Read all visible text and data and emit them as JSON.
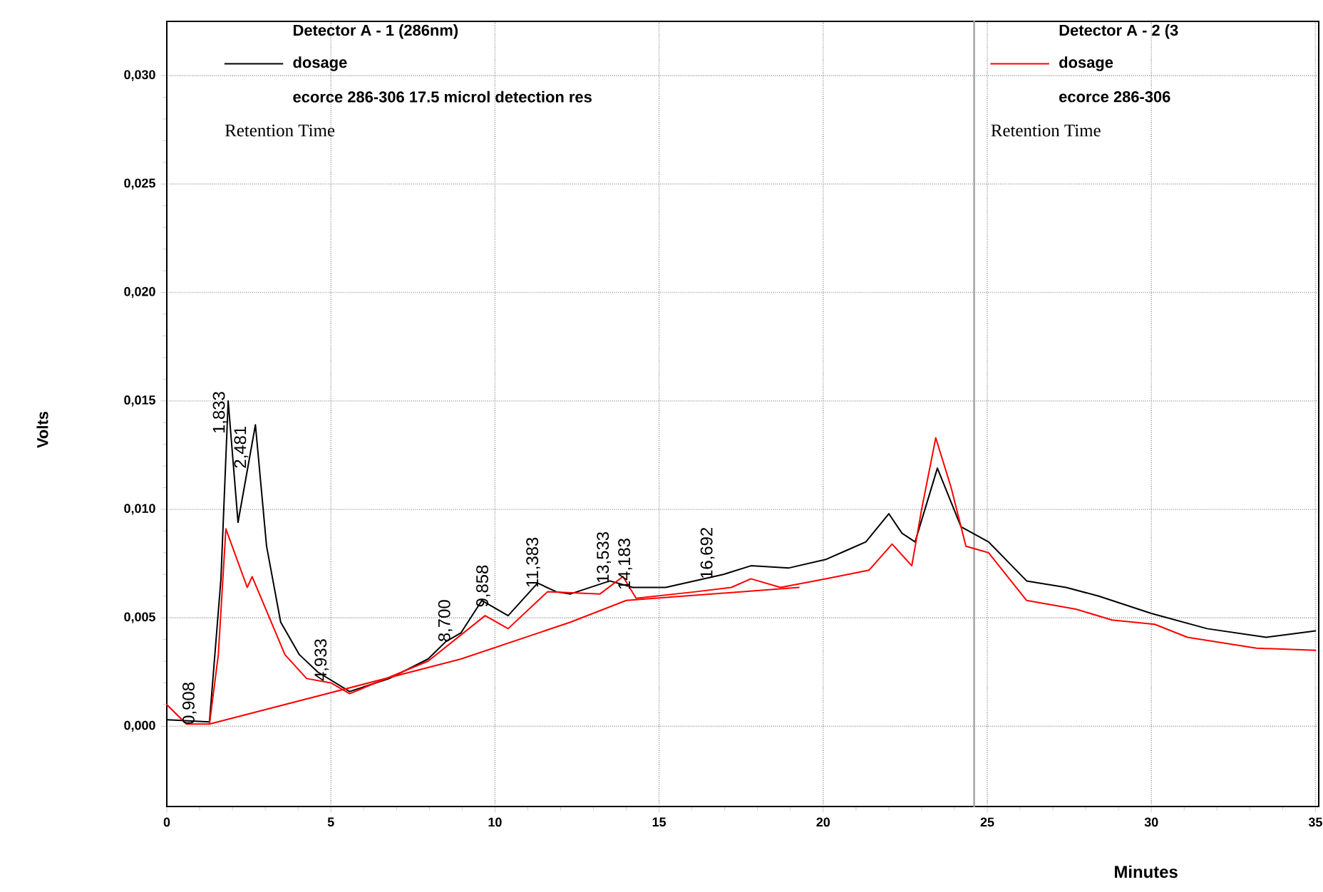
{
  "chart_data": {
    "type": "line",
    "xlabel": "Minutes",
    "ylabel": "Volts",
    "xlim": [
      0,
      35.1
    ],
    "ylim": [
      -0.0037,
      0.0325
    ],
    "xticks": [
      0,
      5,
      10,
      15,
      20,
      25,
      30,
      35
    ],
    "yticks": [
      {
        "value": 0,
        "label": "0,000"
      },
      {
        "value": 0.005,
        "label": "0,005"
      },
      {
        "value": 0.01,
        "label": "0,010"
      },
      {
        "value": 0.015,
        "label": "0,015"
      },
      {
        "value": 0.02,
        "label": "0,020"
      },
      {
        "value": 0.025,
        "label": "0,025"
      },
      {
        "value": 0.03,
        "label": "0,030"
      }
    ],
    "grid": true,
    "legend": "top",
    "marker": "none",
    "line_style": "solid",
    "series": [
      {
        "name": "dosage",
        "color": "#000000",
        "x": [
          0,
          1.3,
          1.65,
          1.87,
          2.17,
          2.7,
          3.04,
          3.47,
          4.04,
          4.6,
          5.57,
          6.78,
          7.96,
          8.5,
          8.96,
          9.6,
          10.4,
          11.3,
          11.87,
          12.3,
          13.5,
          14.2,
          15.2,
          16.96,
          17.8,
          18.96,
          20.1,
          20.7,
          21.3,
          22.0,
          22.4,
          22.8,
          23.48,
          24.2,
          25.04,
          26.2,
          27.4,
          28.4,
          30.0,
          31.7,
          33.5,
          35.0
        ],
        "values": [
          0.0003,
          0.0002,
          0.0068,
          0.015,
          0.0094,
          0.0139,
          0.0083,
          0.0048,
          0.0033,
          0.0025,
          0.0016,
          0.0022,
          0.0031,
          0.0039,
          0.0043,
          0.0058,
          0.0051,
          0.0066,
          0.0062,
          0.0061,
          0.0067,
          0.0064,
          0.0064,
          0.007,
          0.0074,
          0.0073,
          0.0077,
          0.0081,
          0.0085,
          0.0098,
          0.0089,
          0.0085,
          0.0119,
          0.0092,
          0.0085,
          0.0067,
          0.0064,
          0.006,
          0.0052,
          0.0045,
          0.0041,
          0.0044
        ]
      },
      {
        "name": "dosage",
        "color": "#ff0000",
        "x": [
          0,
          0.6,
          1.3,
          1.57,
          1.8,
          2.45,
          2.6,
          3.1,
          3.6,
          4.26,
          5.0,
          5.57,
          7.96,
          9.7,
          10.4,
          11.6,
          13.2,
          13.9,
          14.3,
          16.1,
          17.2,
          17.8,
          18.7,
          20.1,
          21.4,
          22.1,
          22.7,
          23.0,
          23.43,
          23.9,
          24.35,
          25.04,
          26.2,
          27.7,
          28.8,
          30.1,
          31.1,
          33.2,
          35.0
        ],
        "values": [
          0.001,
          0.0001,
          0.0001,
          0.0033,
          0.0091,
          0.0064,
          0.0069,
          0.0051,
          0.0033,
          0.0022,
          0.002,
          0.0015,
          0.003,
          0.0051,
          0.0045,
          0.0062,
          0.0061,
          0.0069,
          0.0059,
          0.0062,
          0.0064,
          0.0068,
          0.0064,
          0.0068,
          0.0072,
          0.0084,
          0.0074,
          0.01,
          0.0133,
          0.011,
          0.0083,
          0.008,
          0.0058,
          0.0054,
          0.0049,
          0.0047,
          0.0041,
          0.0036,
          0.0035
        ]
      },
      {
        "color": "#ff0000",
        "x": [
          1.3,
          8.96,
          12.3,
          14.0,
          19.26
        ],
        "values": [
          0.0001,
          0.0031,
          0.0048,
          0.0058,
          0.0064
        ]
      }
    ],
    "ref_lines": [
      {
        "axis": "x",
        "value": 24.6,
        "color": "#a0a0a0"
      }
    ],
    "annotations": [
      "Detector A - 1 (286nm)",
      "ecorce 286-306  17.5 microl detection res",
      "Retention Time",
      "Detector A - 2 (3",
      "ecorce 286-306",
      "Retention Time",
      {
        "text": "0,908",
        "x": 0.908,
        "y": 0.0002
      },
      {
        "text": "1,833",
        "x": 1.833,
        "y": 0.0136
      },
      {
        "text": "2,481",
        "x": 2.481,
        "y": 0.012
      },
      {
        "text": "4,933",
        "x": 4.933,
        "y": 0.0022
      },
      {
        "text": "8,700",
        "x": 8.7,
        "y": 0.004
      },
      {
        "text": "9,858",
        "x": 9.858,
        "y": 0.0056
      },
      {
        "text": "11,383",
        "x": 11.383,
        "y": 0.0065
      },
      {
        "text": "13,533",
        "x": 13.533,
        "y": 0.0067
      },
      {
        "text": "14,183",
        "x": 14.183,
        "y": 0.0064
      },
      {
        "text": "16,692",
        "x": 16.692,
        "y": 0.0069
      }
    ]
  }
}
